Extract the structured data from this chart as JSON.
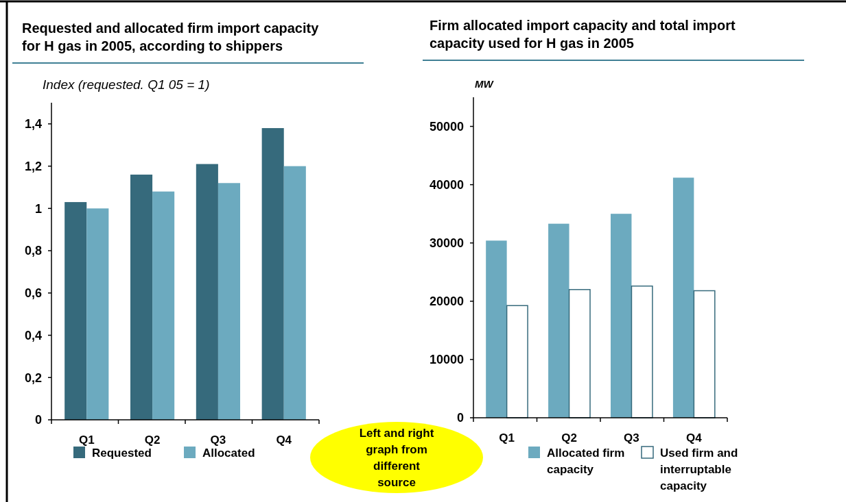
{
  "chart_data": [
    {
      "type": "bar",
      "title": "Requested and allocated firm import capacity for H gas in 2005, according to shippers",
      "ylabel": "Index (requested. Q1 05 = 1)",
      "categories": [
        "Q1",
        "Q2",
        "Q3",
        "Q4"
      ],
      "series": [
        {
          "name": "Requested",
          "color": "#366a7c",
          "values": [
            1.03,
            1.16,
            1.21,
            1.38
          ]
        },
        {
          "name": "Allocated",
          "color": "#6caabf",
          "values": [
            1.0,
            1.08,
            1.12,
            1.2
          ]
        }
      ],
      "ylim": [
        0,
        1.5
      ],
      "yticks": [
        0,
        {
          "value": 0.2,
          "label": "0,2"
        },
        {
          "value": 0.4,
          "label": "0,4"
        },
        {
          "value": 0.6,
          "label": "0,6"
        },
        {
          "value": 0.8,
          "label": "0,8"
        },
        1,
        {
          "value": 1.2,
          "label": "1,2"
        },
        {
          "value": 1.4,
          "label": "1,4"
        }
      ],
      "grid": false,
      "legend": "bottom"
    },
    {
      "type": "bar",
      "title": "Firm allocated import capacity and total import capacity used for H gas in 2005",
      "ylabel": "MW",
      "categories": [
        "Q1",
        "Q2",
        "Q3",
        "Q4"
      ],
      "series": [
        {
          "name": "Allocated firm capacity",
          "color": "#6caabf",
          "values": [
            30400,
            33300,
            35000,
            41200
          ]
        },
        {
          "name": "Used firm and interruptable capacity",
          "color": "#ffffff",
          "values": [
            19250,
            22000,
            22600,
            21800
          ]
        }
      ],
      "ylim": [
        0,
        55000
      ],
      "yticks": [
        0,
        10000,
        20000,
        30000,
        40000,
        50000
      ],
      "grid": false,
      "legend": "bottom",
      "annotations": [
        "Left and right graph from different source"
      ]
    }
  ]
}
